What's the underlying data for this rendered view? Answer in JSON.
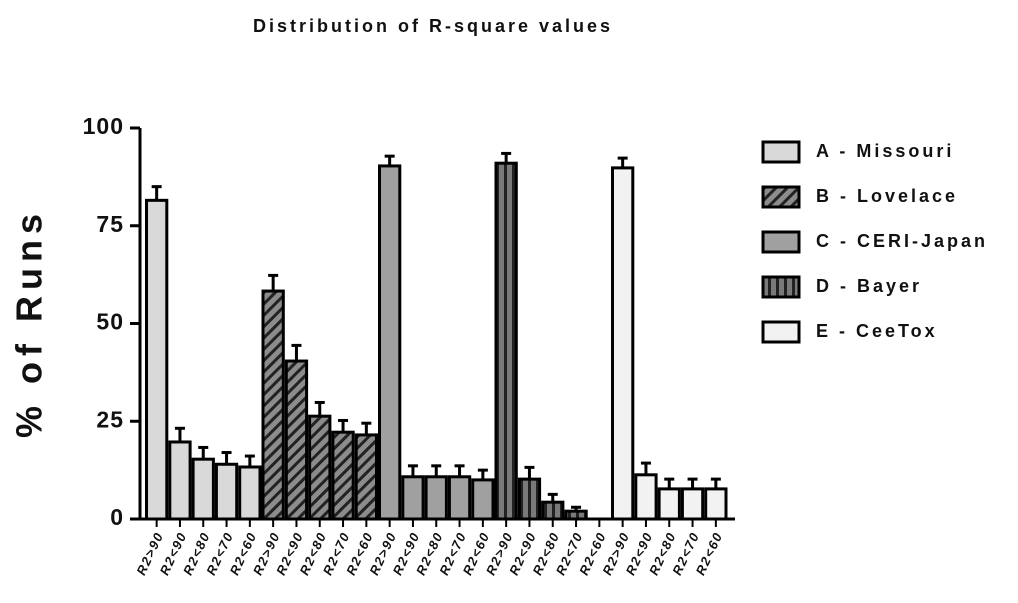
{
  "chart_data": {
    "type": "bar",
    "title": "Distribution of R-square values",
    "y_label": "% of Runs",
    "categories": [
      "R2>90",
      "R2<90",
      "R2<80",
      "R2<70",
      "R2<60"
    ],
    "series": [
      {
        "name": "A - Missouri",
        "color": "#d9d9d9",
        "values": [
          81.5,
          19.7,
          15.3,
          14,
          13.3
        ],
        "errors": [
          3.5,
          3.5,
          3,
          3,
          2.8
        ]
      },
      {
        "name": "B - Lovelace",
        "color": "#8c8c8c",
        "pattern": "diagonal",
        "values": [
          58.3,
          40.4,
          26.3,
          22.2,
          21.5
        ],
        "errors": [
          4,
          4,
          3.5,
          3,
          3
        ]
      },
      {
        "name": "C - CERI-Japan",
        "color": "#a0a0a0",
        "values": [
          90.3,
          10.8,
          10.8,
          10.8,
          10
        ],
        "errors": [
          2.5,
          2.8,
          2.8,
          2.8,
          2.5
        ]
      },
      {
        "name": "D - Bayer",
        "color": "#7a7a7a",
        "pattern": "vertical",
        "values": [
          91,
          10.2,
          4.3,
          2,
          0
        ],
        "errors": [
          2.5,
          3,
          2,
          1,
          0
        ]
      },
      {
        "name": "E - CeeTox",
        "color": "#f2f2f2",
        "values": [
          89.8,
          11.3,
          7.7,
          7.7,
          7.7
        ],
        "errors": [
          2.5,
          3,
          2.5,
          2.5,
          2.5
        ]
      }
    ],
    "ylim": [
      0,
      100
    ],
    "yticks": [
      0,
      25,
      50,
      75,
      100
    ],
    "grid": false,
    "legend": "right"
  }
}
